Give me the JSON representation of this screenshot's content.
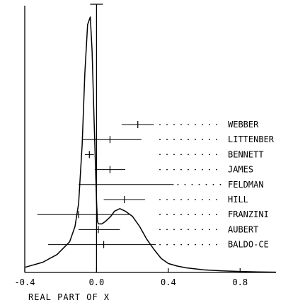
{
  "chart_data": {
    "type": "line",
    "title": "",
    "xlabel": "REAL PART OF X",
    "ylabel": "",
    "xlim": [
      -0.4,
      1.0
    ],
    "x_ticks": [
      {
        "value": -0.4,
        "label": "-0.4"
      },
      {
        "value": 0.0,
        "label": "0.0"
      },
      {
        "value": 0.4,
        "label": "0.4"
      },
      {
        "value": 0.8,
        "label": "0.8"
      }
    ],
    "grid": false,
    "reference_line_x": 0.0,
    "curve": {
      "x": [
        -0.4,
        -0.3,
        -0.22,
        -0.15,
        -0.12,
        -0.1,
        -0.08,
        -0.065,
        -0.05,
        -0.035,
        -0.025,
        -0.015,
        -0.005,
        0.0,
        0.005,
        0.01,
        0.02,
        0.03,
        0.05,
        0.08,
        0.1,
        0.13,
        0.16,
        0.2,
        0.24,
        0.28,
        0.32,
        0.36,
        0.4,
        0.45,
        0.5,
        0.6,
        0.7,
        0.8,
        0.9,
        1.0
      ],
      "y": [
        0.02,
        0.04,
        0.07,
        0.12,
        0.18,
        0.27,
        0.5,
        0.78,
        0.97,
        1.0,
        0.87,
        0.63,
        0.39,
        0.28,
        0.2,
        0.19,
        0.19,
        0.19,
        0.2,
        0.22,
        0.24,
        0.25,
        0.24,
        0.22,
        0.18,
        0.13,
        0.09,
        0.055,
        0.035,
        0.025,
        0.018,
        0.01,
        0.006,
        0.004,
        0.002,
        0.001
      ]
    },
    "experiments": [
      {
        "name": "WEBBER",
        "value": 0.23,
        "low": 0.14,
        "high": 0.32
      },
      {
        "name": "LITTENBER",
        "value": 0.075,
        "low": -0.08,
        "high": 0.25
      },
      {
        "name": "BENNETT",
        "value": -0.04,
        "low": -0.065,
        "high": -0.015
      },
      {
        "name": "JAMES",
        "value": 0.075,
        "low": -0.01,
        "high": 0.16
      },
      {
        "name": "FELDMAN",
        "value": 0.0,
        "low": -0.1,
        "high": 0.43
      },
      {
        "name": "HILL",
        "value": 0.155,
        "low": 0.04,
        "high": 0.27
      },
      {
        "name": "FRANZINI",
        "value": -0.1,
        "low": -0.33,
        "high": 0.18
      },
      {
        "name": "AUBERT",
        "value": 0.01,
        "low": -0.1,
        "high": 0.13
      },
      {
        "name": "BALDO-CE",
        "value": 0.04,
        "low": -0.27,
        "high": 0.33
      }
    ]
  }
}
